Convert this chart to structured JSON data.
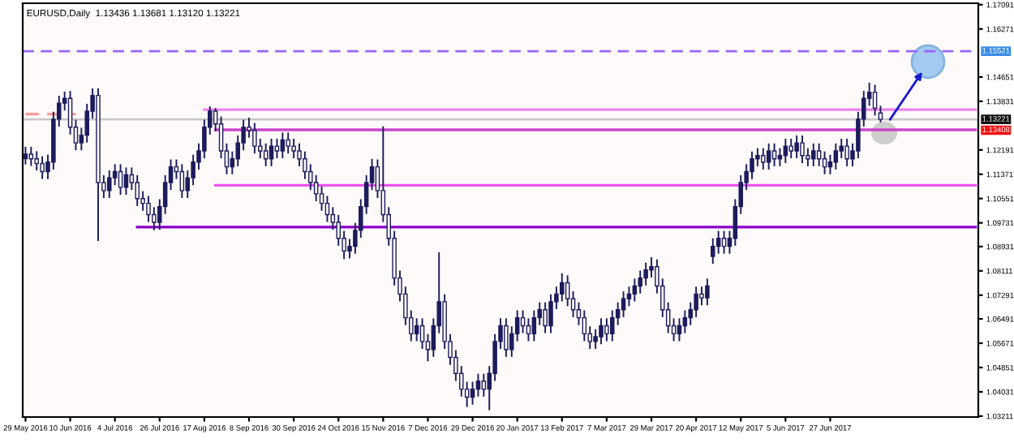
{
  "chart_data": {
    "type": "candlestick",
    "title": "EURUSD,Daily  1.13436 1.13681 1.13120 1.13221",
    "color": "#1c1c5c",
    "grid": false,
    "categories": [
      "29 May 2016",
      null,
      null,
      null,
      null,
      null,
      null,
      null,
      "10 Jun 2016",
      null,
      null,
      null,
      null,
      null,
      null,
      null,
      "4 Jul 2016",
      null,
      null,
      null,
      null,
      null,
      null,
      null,
      "26 Jul 2016",
      null,
      null,
      null,
      null,
      null,
      null,
      null,
      "17 Aug 2016",
      null,
      null,
      null,
      null,
      null,
      null,
      null,
      "8 Sep 2016",
      null,
      null,
      null,
      null,
      null,
      null,
      null,
      "30 Sep 2016",
      null,
      null,
      null,
      null,
      null,
      null,
      null,
      "24 Oct 2016",
      null,
      null,
      null,
      null,
      null,
      null,
      null,
      "15 Nov 2016",
      null,
      null,
      null,
      null,
      null,
      null,
      null,
      "7 Dec 2016",
      null,
      null,
      null,
      null,
      null,
      null,
      null,
      "29 Dec 2016",
      null,
      null,
      null,
      null,
      null,
      null,
      null,
      "20 Jan 2017",
      null,
      null,
      null,
      null,
      null,
      null,
      null,
      "13 Feb 2017",
      null,
      null,
      null,
      null,
      null,
      null,
      null,
      "7 Mar 2017",
      null,
      null,
      null,
      null,
      null,
      null,
      null,
      "29 Mar 2017",
      null,
      null,
      null,
      null,
      null,
      null,
      null,
      "20 Apr 2017",
      null,
      null,
      null,
      null,
      null,
      null,
      null,
      "12 May 2017",
      null,
      null,
      null,
      null,
      null,
      null,
      null,
      "5 Jun 2017",
      null,
      null,
      null,
      null,
      null,
      null,
      null,
      "27 Jun 2017",
      null,
      null,
      null,
      null,
      null,
      null,
      null,
      null,
      null,
      null,
      null,
      null,
      null,
      null,
      null,
      null,
      null,
      null,
      null,
      null,
      null,
      null,
      null,
      null,
      null,
      null
    ],
    "ohlc": [
      [
        1.119,
        1.123,
        1.117,
        1.1205
      ],
      [
        1.1205,
        1.123,
        1.1165,
        1.1189
      ],
      [
        1.1189,
        1.1215,
        1.115,
        1.1173
      ],
      [
        1.1173,
        1.1198,
        1.1121,
        1.1146
      ],
      [
        1.1146,
        1.1203,
        1.1121,
        1.1178
      ],
      [
        1.1178,
        1.1348,
        1.1153,
        1.1323
      ],
      [
        1.1323,
        1.1402,
        1.1298,
        1.1377
      ],
      [
        1.1377,
        1.1416,
        1.1352,
        1.1393
      ],
      [
        1.1393,
        1.1418,
        1.1271,
        1.1296
      ],
      [
        1.1296,
        1.1321,
        1.1218,
        1.1243
      ],
      [
        1.1243,
        1.1294,
        1.1218,
        1.1269
      ],
      [
        1.1269,
        1.1375,
        1.1244,
        1.135
      ],
      [
        1.135,
        1.1427,
        1.1325,
        1.1403
      ],
      [
        1.1403,
        1.1427,
        1.0912,
        1.1109
      ],
      [
        1.1109,
        1.1134,
        1.1057,
        1.1082
      ],
      [
        1.1082,
        1.115,
        1.1057,
        1.1125
      ],
      [
        1.1125,
        1.1171,
        1.11,
        1.1146
      ],
      [
        1.1146,
        1.1171,
        1.1068,
        1.1093
      ],
      [
        1.1093,
        1.116,
        1.1068,
        1.1135
      ],
      [
        1.1135,
        1.116,
        1.1084,
        1.1109
      ],
      [
        1.1109,
        1.1134,
        1.103,
        1.1055
      ],
      [
        1.1055,
        1.108,
        1.1014,
        1.1039
      ],
      [
        1.1039,
        1.1064,
        1.0976,
        1.1001
      ],
      [
        1.1001,
        1.1026,
        1.0948,
        1.0975
      ],
      [
        1.0975,
        1.1053,
        1.095,
        1.1028
      ],
      [
        1.1028,
        1.1134,
        1.1003,
        1.1109
      ],
      [
        1.1109,
        1.1187,
        1.1084,
        1.1162
      ],
      [
        1.1162,
        1.1187,
        1.1121,
        1.1146
      ],
      [
        1.1146,
        1.1171,
        1.1057,
        1.1082
      ],
      [
        1.1082,
        1.115,
        1.1057,
        1.1125
      ],
      [
        1.1125,
        1.1203,
        1.11,
        1.1178
      ],
      [
        1.1178,
        1.1241,
        1.1153,
        1.1216
      ],
      [
        1.1216,
        1.1321,
        1.1191,
        1.1296
      ],
      [
        1.1296,
        1.1366,
        1.1271,
        1.135
      ],
      [
        1.135,
        1.136,
        1.1282,
        1.1307
      ],
      [
        1.1307,
        1.1332,
        1.1191,
        1.1216
      ],
      [
        1.1216,
        1.1241,
        1.1137,
        1.1162
      ],
      [
        1.1162,
        1.1214,
        1.1137,
        1.1189
      ],
      [
        1.1189,
        1.1268,
        1.1164,
        1.1243
      ],
      [
        1.1243,
        1.1321,
        1.1218,
        1.1296
      ],
      [
        1.1296,
        1.1328,
        1.126,
        1.1285
      ],
      [
        1.1285,
        1.131,
        1.1207,
        1.1232
      ],
      [
        1.1232,
        1.1257,
        1.1191,
        1.1216
      ],
      [
        1.1216,
        1.1241,
        1.1164,
        1.1189
      ],
      [
        1.1189,
        1.1257,
        1.1164,
        1.1232
      ],
      [
        1.1232,
        1.1257,
        1.1191,
        1.1216
      ],
      [
        1.1216,
        1.1278,
        1.1191,
        1.1253
      ],
      [
        1.1253,
        1.1278,
        1.1207,
        1.1232
      ],
      [
        1.1232,
        1.1257,
        1.1191,
        1.1216
      ],
      [
        1.1216,
        1.1241,
        1.1164,
        1.1189
      ],
      [
        1.1189,
        1.1214,
        1.1121,
        1.1146
      ],
      [
        1.1146,
        1.1171,
        1.1084,
        1.1109
      ],
      [
        1.1109,
        1.1134,
        1.1046,
        1.1071
      ],
      [
        1.1071,
        1.1096,
        1.1014,
        1.1039
      ],
      [
        1.1039,
        1.1064,
        1.0976,
        1.1001
      ],
      [
        1.1001,
        1.1026,
        1.095,
        1.0975
      ],
      [
        1.0975,
        1.1,
        1.0896,
        1.0921
      ],
      [
        1.0921,
        1.0946,
        1.0851,
        1.0878
      ],
      [
        1.0878,
        1.0919,
        1.0853,
        1.0894
      ],
      [
        1.0894,
        1.0973,
        1.0869,
        1.0948
      ],
      [
        1.0948,
        1.1053,
        1.0923,
        1.1028
      ],
      [
        1.1028,
        1.1134,
        1.1003,
        1.1109
      ],
      [
        1.1109,
        1.1189,
        1.1084,
        1.1162
      ],
      [
        1.1162,
        1.1187,
        1.1057,
        1.1082
      ],
      [
        1.1082,
        1.1299,
        1.0976,
        1.1001
      ],
      [
        1.1001,
        1.1026,
        1.0896,
        1.0921
      ],
      [
        1.0921,
        1.0946,
        1.0762,
        1.0787
      ],
      [
        1.0787,
        1.0812,
        1.0708,
        1.0733
      ],
      [
        1.0733,
        1.0758,
        1.0628,
        1.0653
      ],
      [
        1.0653,
        1.0678,
        1.0574,
        1.0599
      ],
      [
        1.0599,
        1.0651,
        1.0574,
        1.0626
      ],
      [
        1.0626,
        1.0651,
        1.0548,
        1.0573
      ],
      [
        1.0573,
        1.0598,
        1.0506,
        1.0546
      ],
      [
        1.0546,
        1.0651,
        1.0521,
        1.0626
      ],
      [
        1.0626,
        1.0874,
        1.0601,
        1.0707
      ],
      [
        1.0707,
        1.0732,
        1.0548,
        1.0573
      ],
      [
        1.0573,
        1.0598,
        1.0494,
        1.0519
      ],
      [
        1.0519,
        1.0544,
        1.044,
        1.0465
      ],
      [
        1.0465,
        1.049,
        1.0387,
        1.0412
      ],
      [
        1.0412,
        1.0437,
        1.0352,
        1.0385
      ],
      [
        1.0385,
        1.0437,
        1.036,
        1.0412
      ],
      [
        1.0412,
        1.0464,
        1.0387,
        1.0439
      ],
      [
        1.0439,
        1.0464,
        1.0387,
        1.0412
      ],
      [
        1.0412,
        1.049,
        1.0341,
        1.0465
      ],
      [
        1.0465,
        1.0598,
        1.044,
        1.0573
      ],
      [
        1.0573,
        1.0651,
        1.0548,
        1.0626
      ],
      [
        1.0626,
        1.0651,
        1.0521,
        1.0546
      ],
      [
        1.0546,
        1.0624,
        1.0521,
        1.0599
      ],
      [
        1.0599,
        1.0678,
        1.0574,
        1.0653
      ],
      [
        1.0653,
        1.0678,
        1.0601,
        1.0626
      ],
      [
        1.0626,
        1.0651,
        1.0574,
        1.0599
      ],
      [
        1.0599,
        1.0678,
        1.0574,
        1.0653
      ],
      [
        1.0653,
        1.0705,
        1.0628,
        1.068
      ],
      [
        1.068,
        1.0705,
        1.0601,
        1.0626
      ],
      [
        1.0626,
        1.0732,
        1.0601,
        1.0707
      ],
      [
        1.0707,
        1.0758,
        1.0682,
        1.0733
      ],
      [
        1.0733,
        1.0803,
        1.0708,
        1.0771
      ],
      [
        1.0771,
        1.0796,
        1.0692,
        1.0717
      ],
      [
        1.0717,
        1.0742,
        1.0655,
        1.068
      ],
      [
        1.068,
        1.0705,
        1.0628,
        1.0653
      ],
      [
        1.0653,
        1.0678,
        1.0574,
        1.0599
      ],
      [
        1.0599,
        1.0624,
        1.0548,
        1.0573
      ],
      [
        1.0573,
        1.0614,
        1.0548,
        1.0589
      ],
      [
        1.0589,
        1.0651,
        1.0564,
        1.0626
      ],
      [
        1.0626,
        1.0651,
        1.0574,
        1.0599
      ],
      [
        1.0599,
        1.0678,
        1.0574,
        1.0653
      ],
      [
        1.0653,
        1.0705,
        1.0628,
        1.068
      ],
      [
        1.068,
        1.0742,
        1.0655,
        1.0717
      ],
      [
        1.0717,
        1.0758,
        1.0692,
        1.0733
      ],
      [
        1.0733,
        1.0785,
        1.0708,
        1.076
      ],
      [
        1.076,
        1.0812,
        1.0735,
        1.0787
      ],
      [
        1.0787,
        1.0839,
        1.0762,
        1.0814
      ],
      [
        1.0814,
        1.0857,
        1.0789,
        1.0825
      ],
      [
        1.0825,
        1.085,
        1.0735,
        1.076
      ],
      [
        1.076,
        1.0785,
        1.0655,
        1.068
      ],
      [
        1.068,
        1.0705,
        1.0601,
        1.0626
      ],
      [
        1.0626,
        1.0651,
        1.0574,
        1.0599
      ],
      [
        1.0599,
        1.0651,
        1.0574,
        1.0626
      ],
      [
        1.0626,
        1.0678,
        1.0601,
        1.0653
      ],
      [
        1.0653,
        1.0705,
        1.0628,
        1.068
      ],
      [
        1.068,
        1.0758,
        1.0655,
        1.0733
      ],
      [
        1.0733,
        1.0758,
        1.0695,
        1.072
      ],
      [
        1.072,
        1.0785,
        1.0695,
        1.076
      ],
      [
        1.086,
        1.0921,
        1.0835,
        1.0894
      ],
      [
        1.0894,
        1.0946,
        1.0869,
        1.0921
      ],
      [
        1.0921,
        1.0946,
        1.0869,
        1.0894
      ],
      [
        1.0894,
        1.0946,
        1.0869,
        1.0921
      ],
      [
        1.0921,
        1.1053,
        1.0896,
        1.1028
      ],
      [
        1.1028,
        1.1134,
        1.1003,
        1.1109
      ],
      [
        1.1109,
        1.1171,
        1.1084,
        1.1146
      ],
      [
        1.1146,
        1.1214,
        1.1121,
        1.1189
      ],
      [
        1.1189,
        1.1225,
        1.1164,
        1.12
      ],
      [
        1.12,
        1.1225,
        1.1153,
        1.1178
      ],
      [
        1.1178,
        1.1241,
        1.1153,
        1.1216
      ],
      [
        1.1216,
        1.1241,
        1.1164,
        1.1189
      ],
      [
        1.1189,
        1.1225,
        1.1164,
        1.12
      ],
      [
        1.12,
        1.1257,
        1.1175,
        1.1232
      ],
      [
        1.1232,
        1.1257,
        1.1191,
        1.1216
      ],
      [
        1.1216,
        1.1268,
        1.1191,
        1.1243
      ],
      [
        1.1243,
        1.1268,
        1.1175,
        1.12
      ],
      [
        1.12,
        1.1225,
        1.1164,
        1.1189
      ],
      [
        1.1189,
        1.1241,
        1.1164,
        1.1216
      ],
      [
        1.1216,
        1.1241,
        1.1164,
        1.1189
      ],
      [
        1.1189,
        1.1214,
        1.1137,
        1.1162
      ],
      [
        1.1162,
        1.1203,
        1.1137,
        1.1178
      ],
      [
        1.1178,
        1.1241,
        1.1153,
        1.1216
      ],
      [
        1.1216,
        1.1257,
        1.1191,
        1.1232
      ],
      [
        1.1232,
        1.1257,
        1.1164,
        1.1189
      ],
      [
        1.1189,
        1.1241,
        1.1164,
        1.1216
      ],
      [
        1.1216,
        1.1348,
        1.1191,
        1.1323
      ],
      [
        1.1323,
        1.1418,
        1.1298,
        1.1393
      ],
      [
        1.1393,
        1.1446,
        1.1368,
        1.1414
      ],
      [
        1.1414,
        1.1439,
        1.1335,
        1.136
      ],
      [
        1.13436,
        1.13681,
        1.1312,
        1.13221
      ],
      null,
      null,
      null,
      null,
      null,
      null,
      null,
      null,
      null,
      null,
      null,
      null,
      null,
      null,
      null,
      null,
      null
    ],
    "ylim": [
      1.0318,
      1.1714
    ],
    "yticks": [
      {
        "value": 1.17091,
        "label": "1.17091"
      },
      {
        "value": 1.16271,
        "label": "1.16271"
      },
      {
        "value": 1.14651,
        "label": "1.14651"
      },
      {
        "value": 1.13831,
        "label": "1.13831"
      },
      {
        "value": 1.12191,
        "label": "1.12191"
      },
      {
        "value": 1.11371,
        "label": "1.11371"
      },
      {
        "value": 1.10551,
        "label": "1.10551"
      },
      {
        "value": 1.09731,
        "label": "1.09731"
      },
      {
        "value": 1.08931,
        "label": "1.08931"
      },
      {
        "value": 1.08111,
        "label": "1.08111"
      },
      {
        "value": 1.07291,
        "label": "1.07291"
      },
      {
        "value": 1.06491,
        "label": "1.06491"
      },
      {
        "value": 1.05671,
        "label": "1.05671"
      },
      {
        "value": 1.04851,
        "label": "1.04851"
      },
      {
        "value": 1.04031,
        "label": "1.04031"
      },
      {
        "value": 1.03211,
        "label": "1.03211"
      }
    ],
    "series": [
      {
        "type": "line",
        "color": "#ee82ee",
        "line_style": "solid",
        "values": [
          null,
          null,
          null,
          null,
          null,
          null,
          null,
          null,
          null,
          null,
          null,
          null,
          null,
          null,
          null,
          null,
          null,
          null,
          null,
          null,
          null,
          null,
          null,
          null,
          null,
          null,
          null,
          null,
          null,
          null,
          null,
          null,
          1.1355,
          1.1355,
          1.1355,
          1.1355,
          1.1355,
          1.1355,
          1.1355,
          1.1355,
          1.1355,
          1.1355,
          1.1355,
          1.1355,
          1.1355,
          1.1355,
          1.1355,
          1.1355,
          1.1355,
          1.1355,
          1.1355,
          1.1355,
          1.1355,
          1.1355,
          1.1355,
          1.1355,
          1.1355,
          1.1355,
          1.1355,
          1.1355,
          1.1355,
          1.1355,
          1.1355,
          1.1355,
          1.1355,
          1.1355,
          1.1355,
          1.1355,
          1.1355,
          1.1355,
          1.1355,
          1.1355,
          1.1355,
          1.1355,
          1.1355,
          1.1355,
          1.1355,
          1.1355,
          1.1355,
          1.1355,
          1.1355,
          1.1355,
          1.1355,
          1.1355,
          1.1355,
          1.1355,
          1.1355,
          1.1355,
          1.1355,
          1.1355,
          1.1355,
          1.1355,
          1.1355,
          1.1355,
          1.1355,
          1.1355,
          1.1355,
          1.1355,
          1.1355,
          1.1355,
          1.1355,
          1.1355,
          1.1355,
          1.1355,
          1.1355,
          1.1355,
          1.1355,
          1.1355,
          1.1355,
          1.1355,
          1.1355,
          1.1355,
          1.1355,
          1.1355,
          1.1355,
          1.1355,
          1.1355,
          1.1355,
          1.1355,
          1.1355,
          1.1355,
          1.1355,
          1.1355,
          1.1355,
          1.1355,
          1.1355,
          1.1355,
          1.1355,
          1.1355,
          1.1355,
          1.1355,
          1.1355,
          1.1355,
          1.1355,
          1.1355,
          1.1355,
          1.1355,
          1.1355,
          1.1355,
          1.1355,
          1.1355,
          1.1355,
          1.1355,
          1.1355,
          1.1355,
          1.1355,
          1.1355,
          1.1355,
          1.1355,
          1.1355,
          1.1355,
          1.1355,
          1.1355,
          1.1355,
          1.1355,
          1.1355,
          1.1355,
          1.1355,
          1.1355,
          1.1355,
          1.1355,
          1.1355,
          1.1355,
          1.1355,
          1.1355,
          1.1355,
          1.1355,
          1.1355,
          1.1355,
          1.1355,
          1.1355
        ]
      },
      {
        "type": "line",
        "color": "#cc44cc",
        "line_style": "solid",
        "values": [
          null,
          null,
          null,
          null,
          null,
          null,
          null,
          null,
          null,
          null,
          null,
          null,
          null,
          null,
          null,
          null,
          null,
          null,
          null,
          null,
          null,
          null,
          null,
          null,
          null,
          null,
          null,
          null,
          null,
          null,
          null,
          null,
          null,
          null,
          1.1287,
          1.1287,
          1.1287,
          1.1287,
          1.1287,
          1.1287,
          1.1287,
          1.1287,
          1.1287,
          1.1287,
          1.1287,
          1.1287,
          1.1287,
          1.1287,
          1.1287,
          1.1287,
          1.1287,
          1.1287,
          1.1287,
          1.1287,
          1.1287,
          1.1287,
          1.1287,
          1.1287,
          1.1287,
          1.1287,
          1.1287,
          1.1287,
          1.1287,
          1.1287,
          1.1287,
          1.1287,
          1.1287,
          1.1287,
          1.1287,
          1.1287,
          1.1287,
          1.1287,
          1.1287,
          1.1287,
          1.1287,
          1.1287,
          1.1287,
          1.1287,
          1.1287,
          1.1287,
          1.1287,
          1.1287,
          1.1287,
          1.1287,
          1.1287,
          1.1287,
          1.1287,
          1.1287,
          1.1287,
          1.1287,
          1.1287,
          1.1287,
          1.1287,
          1.1287,
          1.1287,
          1.1287,
          1.1287,
          1.1287,
          1.1287,
          1.1287,
          1.1287,
          1.1287,
          1.1287,
          1.1287,
          1.1287,
          1.1287,
          1.1287,
          1.1287,
          1.1287,
          1.1287,
          1.1287,
          1.1287,
          1.1287,
          1.1287,
          1.1287,
          1.1287,
          1.1287,
          1.1287,
          1.1287,
          1.1287,
          1.1287,
          1.1287,
          1.1287,
          1.1287,
          1.1287,
          1.1287,
          1.1287,
          1.1287,
          1.1287,
          1.1287,
          1.1287,
          1.1287,
          1.1287,
          1.1287,
          1.1287,
          1.1287,
          1.1287,
          1.1287,
          1.1287,
          1.1287,
          1.1287,
          1.1287,
          1.1287,
          1.1287,
          1.1287,
          1.1287,
          1.1287,
          1.1287,
          1.1287,
          1.1287,
          1.1287,
          1.1287,
          1.1287,
          1.1287,
          1.1287,
          1.1287,
          1.1287,
          1.1287,
          1.1287,
          1.1287,
          1.1287,
          1.1287,
          1.1287,
          1.1287,
          1.1287,
          1.1287,
          1.1287,
          1.1287,
          1.1287,
          1.1287,
          1.1287
        ]
      },
      {
        "type": "line",
        "color": "#ee55ee",
        "line_style": "solid",
        "values": [
          null,
          null,
          null,
          null,
          null,
          null,
          null,
          null,
          null,
          null,
          null,
          null,
          null,
          null,
          null,
          null,
          null,
          null,
          null,
          null,
          null,
          null,
          null,
          null,
          null,
          null,
          null,
          null,
          null,
          null,
          null,
          null,
          null,
          null,
          1.11,
          1.11,
          1.11,
          1.11,
          1.11,
          1.11,
          1.11,
          1.11,
          1.11,
          1.11,
          1.11,
          1.11,
          1.11,
          1.11,
          1.11,
          1.11,
          1.11,
          1.11,
          1.11,
          1.11,
          1.11,
          1.11,
          1.11,
          1.11,
          1.11,
          1.11,
          1.11,
          1.11,
          1.11,
          1.11,
          1.11,
          1.11,
          1.11,
          1.11,
          1.11,
          1.11,
          1.11,
          1.11,
          1.11,
          1.11,
          1.11,
          1.11,
          1.11,
          1.11,
          1.11,
          1.11,
          1.11,
          1.11,
          1.11,
          1.11,
          1.11,
          1.11,
          1.11,
          1.11,
          1.11,
          1.11,
          1.11,
          1.11,
          1.11,
          1.11,
          1.11,
          1.11,
          1.11,
          1.11,
          1.11,
          1.11,
          1.11,
          1.11,
          1.11,
          1.11,
          1.11,
          1.11,
          1.11,
          1.11,
          1.11,
          1.11,
          1.11,
          1.11,
          1.11,
          1.11,
          1.11,
          1.11,
          1.11,
          1.11,
          1.11,
          1.11,
          1.11,
          1.11,
          1.11,
          1.11,
          1.11,
          1.11,
          1.11,
          1.11,
          1.11,
          1.11,
          1.11,
          1.11,
          1.11,
          1.11,
          1.11,
          1.11,
          1.11,
          1.11,
          1.11,
          1.11,
          1.11,
          1.11,
          1.11,
          1.11,
          1.11,
          1.11,
          1.11,
          1.11,
          1.11,
          1.11,
          1.11,
          1.11,
          1.11,
          1.11,
          1.11,
          1.11,
          1.11,
          1.11,
          1.11,
          1.11,
          1.11,
          1.11,
          1.11,
          1.11,
          1.11,
          1.11,
          1.11,
          1.11,
          1.11,
          1.11,
          1.11
        ]
      },
      {
        "type": "line",
        "color": "#8a00c8",
        "line_style": "solid",
        "values": [
          null,
          null,
          null,
          null,
          null,
          null,
          null,
          null,
          null,
          null,
          null,
          null,
          null,
          null,
          null,
          null,
          null,
          null,
          null,
          null,
          1.0959,
          1.0959,
          1.0959,
          1.0959,
          1.0959,
          1.0959,
          1.0959,
          1.0959,
          1.0959,
          1.0959,
          1.0959,
          1.0959,
          1.0959,
          1.0959,
          1.0959,
          1.0959,
          1.0959,
          1.0959,
          1.0959,
          1.0959,
          1.0959,
          1.0959,
          1.0959,
          1.0959,
          1.0959,
          1.0959,
          1.0959,
          1.0959,
          1.0959,
          1.0959,
          1.0959,
          1.0959,
          1.0959,
          1.0959,
          1.0959,
          1.0959,
          1.0959,
          1.0959,
          1.0959,
          1.0959,
          1.0959,
          1.0959,
          1.0959,
          1.0959,
          1.0959,
          1.0959,
          1.0959,
          1.0959,
          1.0959,
          1.0959,
          1.0959,
          1.0959,
          1.0959,
          1.0959,
          1.0959,
          1.0959,
          1.0959,
          1.0959,
          1.0959,
          1.0959,
          1.0959,
          1.0959,
          1.0959,
          1.0959,
          1.0959,
          1.0959,
          1.0959,
          1.0959,
          1.0959,
          1.0959,
          1.0959,
          1.0959,
          1.0959,
          1.0959,
          1.0959,
          1.0959,
          1.0959,
          1.0959,
          1.0959,
          1.0959,
          1.0959,
          1.0959,
          1.0959,
          1.0959,
          1.0959,
          1.0959,
          1.0959,
          1.0959,
          1.0959,
          1.0959,
          1.0959,
          1.0959,
          1.0959,
          1.0959,
          1.0959,
          1.0959,
          1.0959,
          1.0959,
          1.0959,
          1.0959,
          1.0959,
          1.0959,
          1.0959,
          1.0959,
          1.0959,
          1.0959,
          1.0959,
          1.0959,
          1.0959,
          1.0959,
          1.0959,
          1.0959,
          1.0959,
          1.0959,
          1.0959,
          1.0959,
          1.0959,
          1.0959,
          1.0959,
          1.0959,
          1.0959,
          1.0959,
          1.0959,
          1.0959,
          1.0959,
          1.0959,
          1.0959,
          1.0959,
          1.0959,
          1.0959,
          1.0959,
          1.0959,
          1.0959,
          1.0959,
          1.0959,
          1.0959,
          1.0959,
          1.0959,
          1.0959,
          1.0959,
          1.0959,
          1.0959,
          1.0959,
          1.0959,
          1.0959,
          1.0959,
          1.0959,
          1.0959,
          1.0959,
          1.0959,
          1.0959
        ]
      },
      {
        "type": "line",
        "color": "#ff9a9a",
        "line_style": "dashed",
        "values": [
          1.134,
          1.134,
          1.134,
          1.134,
          1.134,
          1.134,
          1.134,
          1.134,
          1.134,
          1.134,
          null,
          null,
          null,
          null,
          null,
          null,
          null,
          null,
          null,
          null,
          null,
          null,
          null,
          null,
          null,
          null,
          null,
          null,
          null,
          null,
          null,
          null,
          null,
          null,
          null,
          null,
          null,
          null,
          null,
          null,
          null,
          null,
          null,
          null,
          null,
          null,
          null,
          null,
          null,
          null,
          null,
          null,
          null,
          null,
          null,
          null,
          null,
          null,
          null,
          null,
          null,
          null,
          null,
          null,
          null,
          null,
          null,
          null,
          null,
          null,
          null,
          null,
          null,
          null,
          null,
          null,
          null,
          null,
          null,
          null,
          null,
          null,
          null,
          null,
          null,
          null,
          null,
          null,
          null,
          null,
          null,
          null,
          null,
          null,
          null,
          null,
          null,
          null,
          null,
          null,
          null,
          null,
          null,
          null,
          null,
          null,
          null,
          null,
          null,
          null,
          null,
          null,
          null,
          null,
          null,
          null,
          null,
          null,
          null,
          null,
          null,
          null,
          null,
          null,
          null,
          null,
          null,
          null,
          null,
          null,
          null,
          null,
          null,
          null,
          null,
          null,
          null,
          null,
          null,
          null,
          null,
          null,
          null,
          null,
          null,
          null,
          null,
          null,
          null,
          null,
          null,
          null,
          null,
          null,
          null,
          null,
          null,
          null,
          null,
          null,
          null,
          null,
          null,
          null,
          null,
          null,
          null,
          null,
          null,
          null,
          null
        ]
      }
    ],
    "ref_lines": [
      {
        "axis": "y",
        "value": 1.15521,
        "label": "1.15521",
        "color": "#9966ff",
        "line_style": "dashed"
      },
      {
        "axis": "y",
        "value": 1.13221,
        "label": "1.13221",
        "color": "#c8c8c8",
        "line_style": "solid"
      }
    ],
    "annotations": [
      "1.13408"
    ]
  }
}
